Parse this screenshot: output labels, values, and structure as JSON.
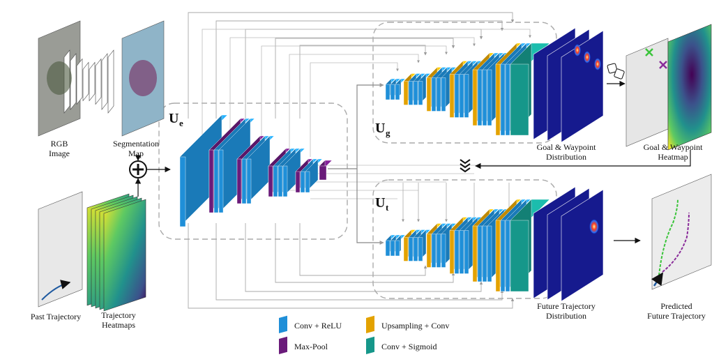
{
  "inputs": {
    "rgb_image": [
      "RGB",
      "Image"
    ],
    "segmentation_map": [
      "Segmentation",
      "Map"
    ],
    "past_trajectory": "Past Trajectory",
    "trajectory_heatmaps": [
      "Trajectory",
      "Heatmaps"
    ]
  },
  "modules": {
    "encoder": {
      "symbol": "U",
      "subscript": "e"
    },
    "goal_decoder": {
      "symbol": "U",
      "subscript": "g"
    },
    "trajectory_decoder": {
      "symbol": "U",
      "subscript": "t"
    }
  },
  "outputs": {
    "goal_waypoint_distribution": [
      "Goal & Waypoint",
      "Distribution"
    ],
    "goal_waypoint_heatmap": [
      "Goal & Waypoint",
      "Heatmap"
    ],
    "future_trajectory_distribution": [
      "Future Trajectory",
      "Distribution"
    ],
    "predicted_future_trajectory": [
      "Predicted",
      "Future Trajectory"
    ]
  },
  "legend": [
    {
      "label": "Conv + ReLU",
      "color": "#1f8fd8"
    },
    {
      "label": "Max-Pool",
      "color": "#6a1b7a"
    },
    {
      "label": "Upsampling + Conv",
      "color": "#e3a200"
    },
    {
      "label": "Conv + Sigmoid",
      "color": "#16978a"
    }
  ]
}
